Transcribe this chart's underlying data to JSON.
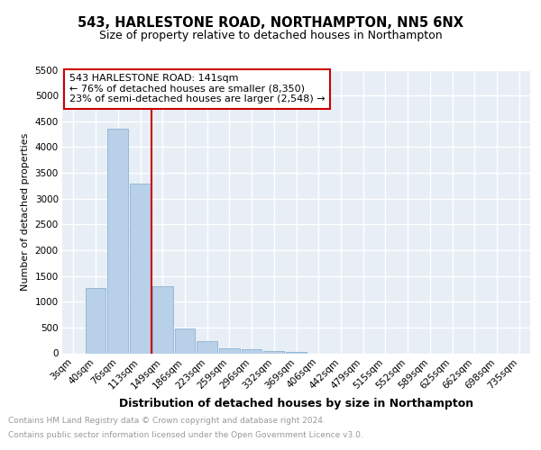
{
  "title": "543, HARLESTONE ROAD, NORTHAMPTON, NN5 6NX",
  "subtitle": "Size of property relative to detached houses in Northampton",
  "xlabel": "Distribution of detached houses by size in Northampton",
  "ylabel": "Number of detached properties",
  "categories": [
    "3sqm",
    "40sqm",
    "76sqm",
    "113sqm",
    "149sqm",
    "186sqm",
    "223sqm",
    "259sqm",
    "296sqm",
    "332sqm",
    "369sqm",
    "406sqm",
    "442sqm",
    "479sqm",
    "515sqm",
    "552sqm",
    "589sqm",
    "625sqm",
    "662sqm",
    "698sqm",
    "735sqm"
  ],
  "values": [
    0,
    1270,
    4350,
    3300,
    1300,
    480,
    240,
    90,
    70,
    50,
    30,
    0,
    0,
    0,
    0,
    0,
    0,
    0,
    0,
    0,
    0
  ],
  "bar_color": "#b8d0e8",
  "bar_edge_color": "#8ab4d4",
  "red_line_x": 3.5,
  "red_line_color": "#cc0000",
  "ylim": [
    0,
    5500
  ],
  "yticks": [
    0,
    500,
    1000,
    1500,
    2000,
    2500,
    3000,
    3500,
    4000,
    4500,
    5000,
    5500
  ],
  "annotation_title": "543 HARLESTONE ROAD: 141sqm",
  "annotation_line1": "← 76% of detached houses are smaller (8,350)",
  "annotation_line2": "23% of semi-detached houses are larger (2,548) →",
  "annotation_box_color": "#cc0000",
  "footer_line1": "Contains HM Land Registry data © Crown copyright and database right 2024.",
  "footer_line2": "Contains public sector information licensed under the Open Government Licence v3.0.",
  "bg_color": "#e8eef5",
  "grid_color": "#ffffff",
  "title_fontsize": 10.5,
  "subtitle_fontsize": 9,
  "xlabel_fontsize": 9,
  "ylabel_fontsize": 8,
  "tick_fontsize": 7.5,
  "footer_fontsize": 6.5,
  "ann_fontsize": 8
}
